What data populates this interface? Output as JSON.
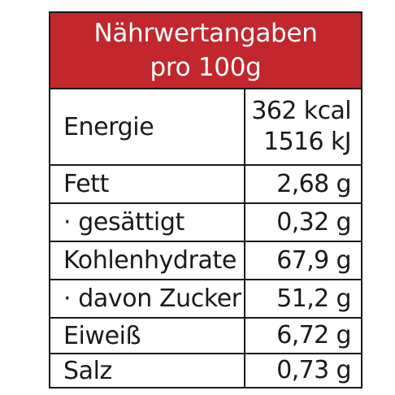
{
  "header": {
    "title": "Nährwertangaben",
    "subtitle": "pro 100g"
  },
  "rows": [
    {
      "label": "Energie",
      "values": [
        "362 kcal",
        "1516 kJ"
      ]
    },
    {
      "label": "Fett",
      "values": [
        "2,68 g"
      ]
    },
    {
      "label": "· gesättigt",
      "values": [
        "0,32 g"
      ]
    },
    {
      "label": "Kohlenhydrate",
      "values": [
        "67,9 g"
      ]
    },
    {
      "label": "· davon Zucker",
      "values": [
        "51,2 g"
      ]
    },
    {
      "label": "Eiweiß",
      "values": [
        "6,72 g"
      ]
    },
    {
      "label": "Salz",
      "values": [
        "0,73 g"
      ]
    }
  ],
  "colors": {
    "header_background": "#c1272d",
    "header_text": "#ffffff",
    "border": "#1a1a1a"
  }
}
